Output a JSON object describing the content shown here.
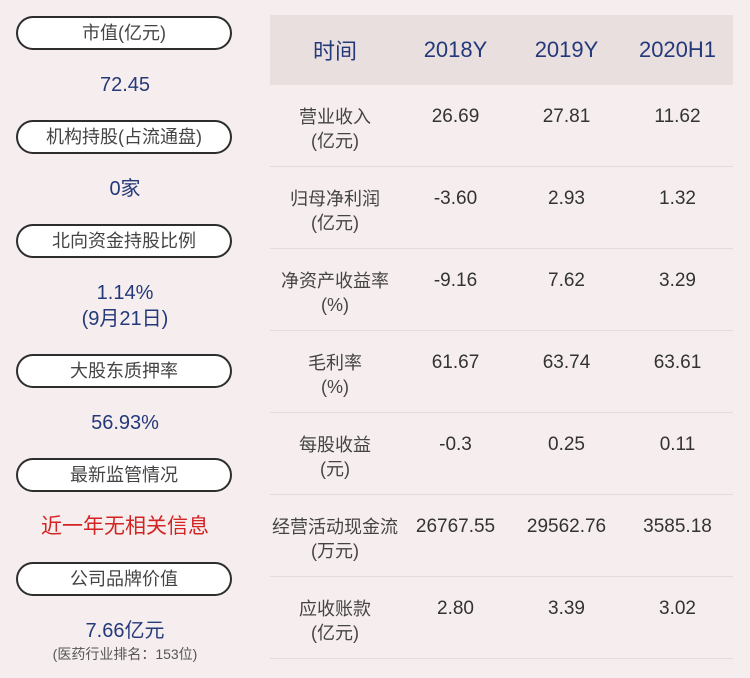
{
  "left_panel": [
    {
      "label": "市值(亿元)",
      "value": "72.45"
    },
    {
      "label": "机构持股(占流通盘)",
      "value": "0家"
    },
    {
      "label": "北向资金持股比例",
      "value": "1.14%",
      "value2": "(9月21日)"
    },
    {
      "label": "大股东质押率",
      "value": "56.93%"
    },
    {
      "label": "最新监管情况",
      "value": "近一年无相关信息"
    },
    {
      "label": "公司品牌价值",
      "value": "7.66亿元",
      "note": "(医药行业排名：153位)"
    }
  ],
  "table": {
    "headers": [
      "时间",
      "2018Y",
      "2019Y",
      "2020H1"
    ],
    "rows": [
      {
        "name": "营业收入",
        "unit": "(亿元)",
        "values": [
          "26.69",
          "27.81",
          "11.62"
        ]
      },
      {
        "name": "归母净利润",
        "unit": "(亿元)",
        "values": [
          "-3.60",
          "2.93",
          "1.32"
        ]
      },
      {
        "name": "净资产收益率",
        "unit": "(%)",
        "values": [
          "-9.16",
          "7.62",
          "3.29"
        ]
      },
      {
        "name": "毛利率",
        "unit": "(%)",
        "values": [
          "61.67",
          "63.74",
          "63.61"
        ]
      },
      {
        "name": "每股收益",
        "unit": "(元)",
        "values": [
          "-0.3",
          "0.25",
          "0.11"
        ]
      },
      {
        "name": "经营活动现金流",
        "unit": "(万元)",
        "values": [
          "26767.55",
          "29562.76",
          "3585.18"
        ]
      },
      {
        "name": "应收账款",
        "unit": "(亿元)",
        "values": [
          "2.80",
          "3.39",
          "3.02"
        ]
      }
    ]
  }
}
